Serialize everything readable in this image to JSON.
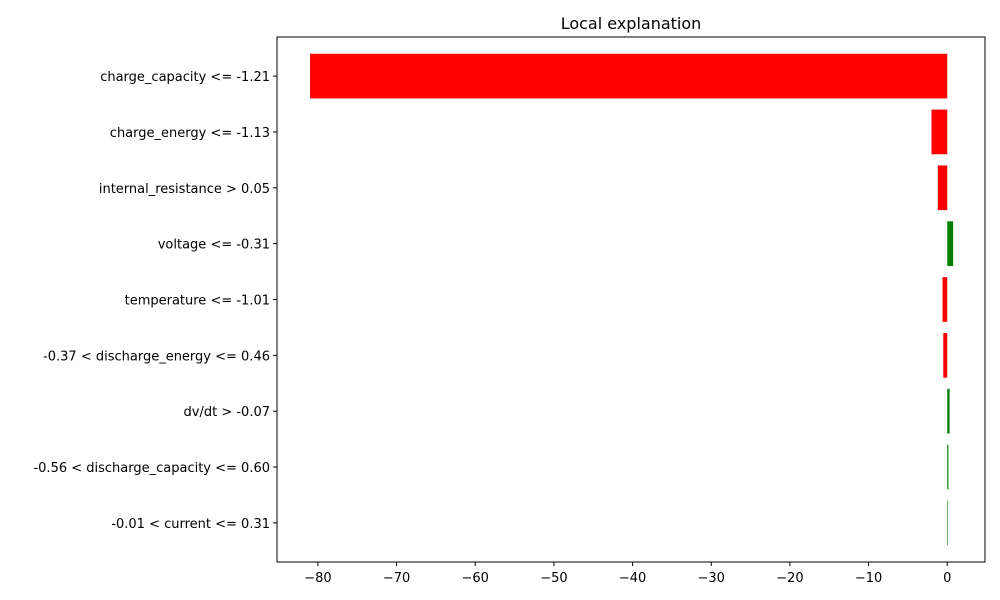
{
  "chart_data": {
    "type": "bar",
    "orientation": "horizontal",
    "title": "Local explanation",
    "xlabel": "",
    "ylabel": "",
    "xlim": [
      -85.2,
      4.8
    ],
    "xticks": [
      -80,
      -70,
      -60,
      -50,
      -40,
      -30,
      -20,
      -10,
      0
    ],
    "xtick_labels": [
      "−80",
      "−70",
      "−60",
      "−50",
      "−40",
      "−30",
      "−20",
      "−10",
      "0"
    ],
    "grid": false,
    "categories": [
      "charge_capacity <= -1.21",
      "charge_energy <= -1.13",
      "internal_resistance > 0.05",
      "voltage <= -0.31",
      "temperature <= -1.01",
      "-0.37 < discharge_energy <= 0.46",
      "dv/dt > -0.07",
      "-0.56 < discharge_capacity <= 0.60",
      "-0.01 < current <= 0.31"
    ],
    "values": [
      -81.0,
      -2.0,
      -1.2,
      0.75,
      -0.6,
      -0.5,
      0.3,
      0.15,
      0.02
    ],
    "colors": {
      "positive": "#008000",
      "negative": "#ff0000",
      "axis": "#000000"
    }
  }
}
